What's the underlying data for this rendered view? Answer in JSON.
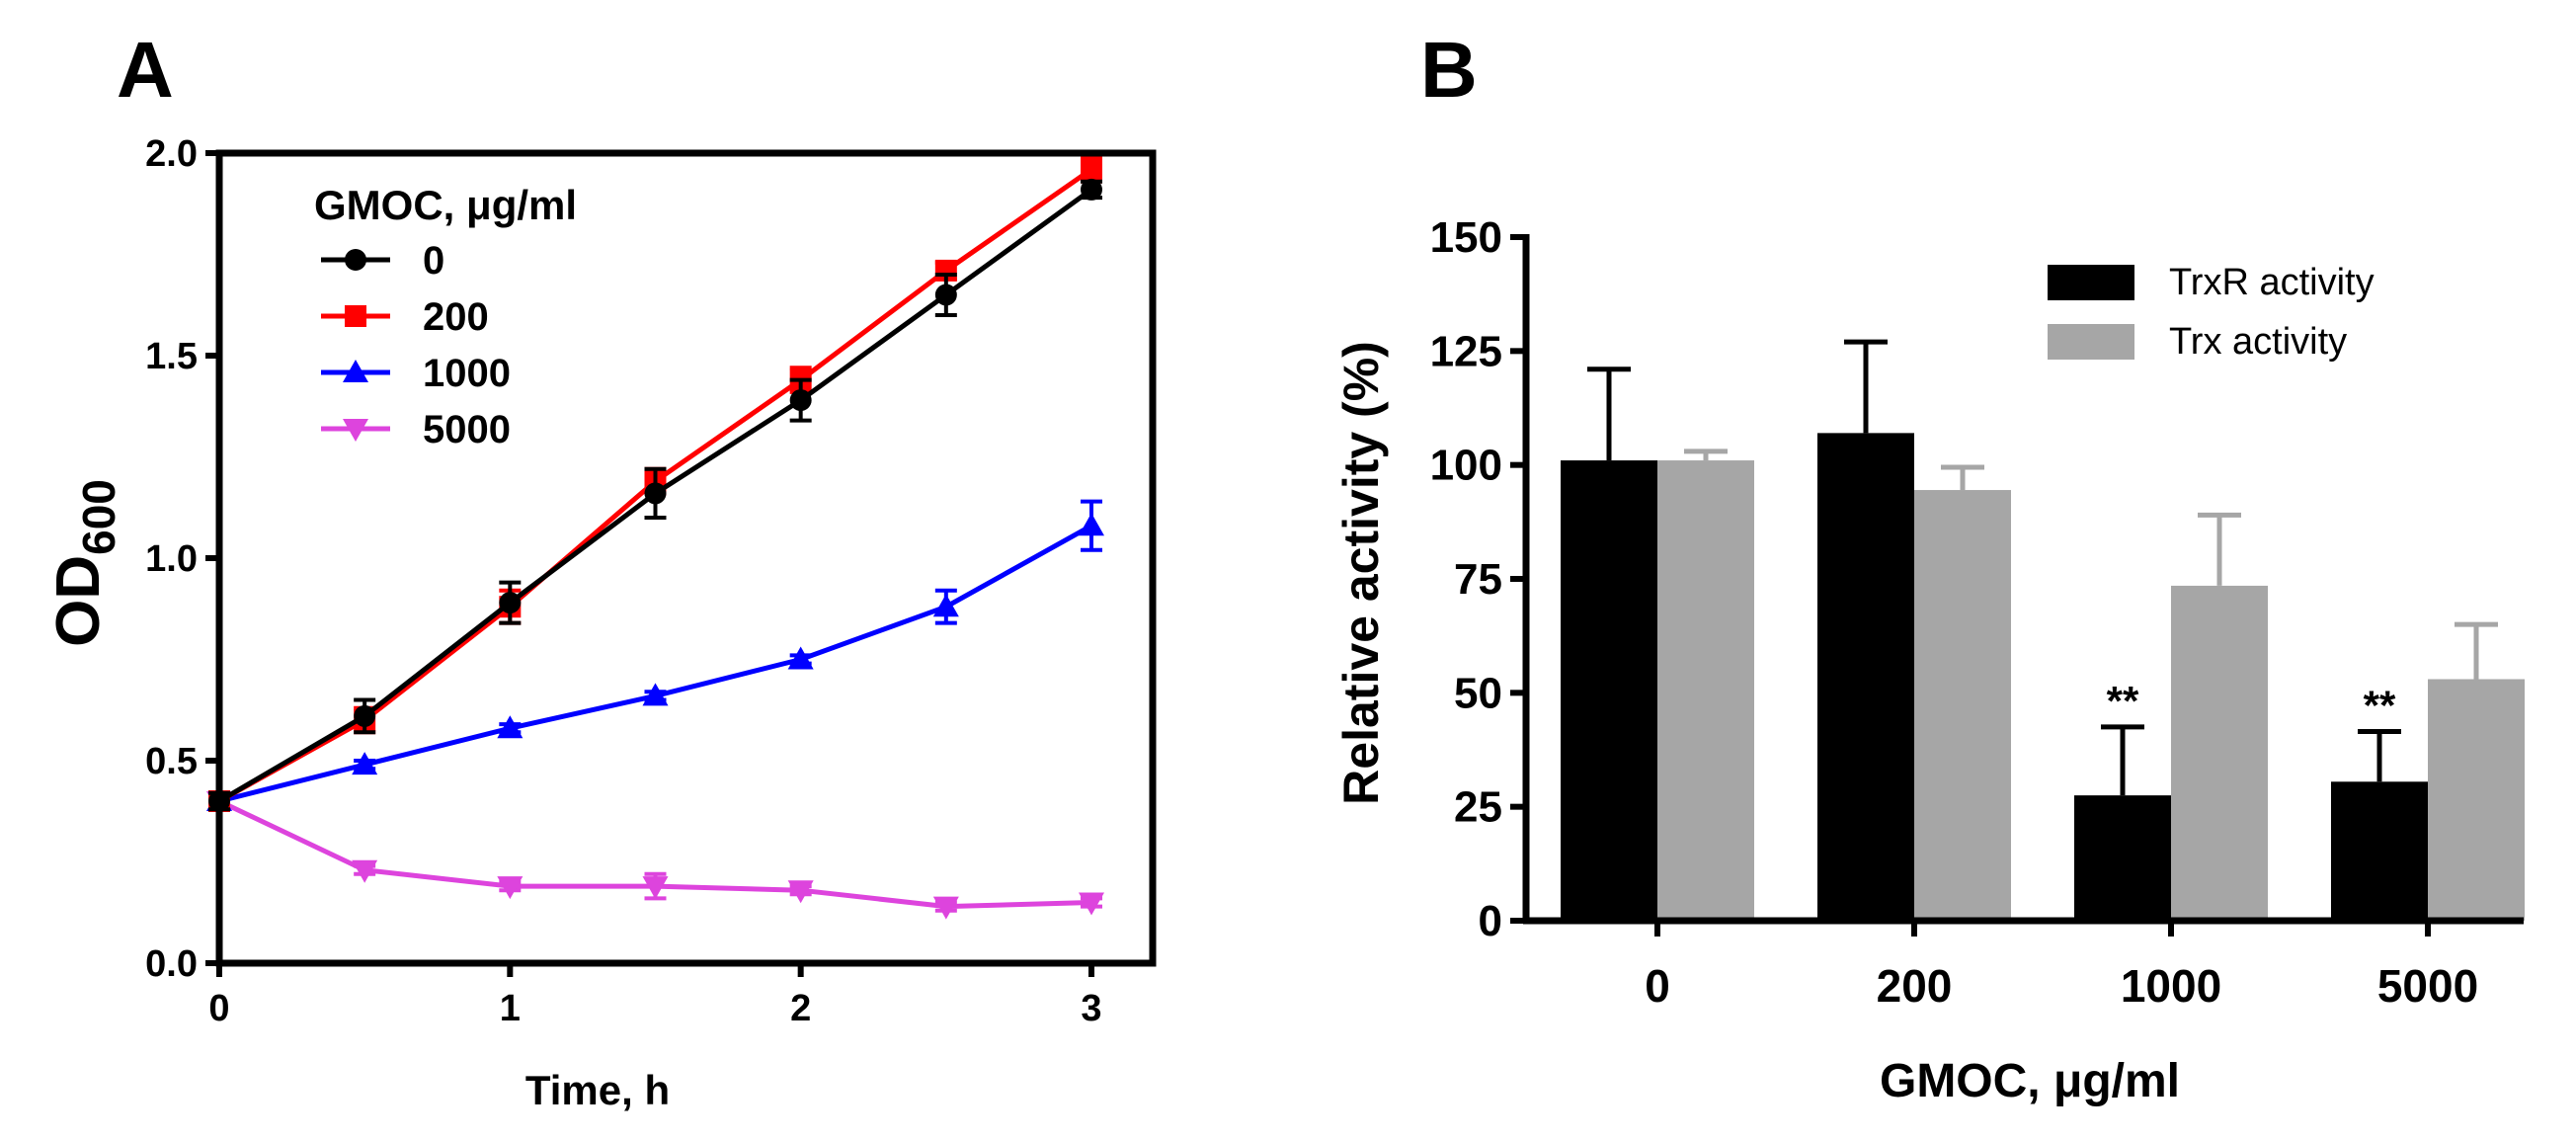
{
  "panels": {
    "a_label": "A",
    "b_label": "B"
  },
  "colors": {
    "black": "#000000",
    "red": "#ff0000",
    "blue": "#0000ff",
    "magenta": "#dd44dd",
    "gray": "#a6a6a6"
  },
  "chart_data": [
    {
      "id": "A",
      "type": "line",
      "title": "",
      "xlabel": "Time, h",
      "ylabel_main": "OD",
      "ylabel_sub": "600",
      "xlim": [
        0,
        3
      ],
      "ylim": [
        0,
        2
      ],
      "xticks": [
        0,
        1,
        2,
        3
      ],
      "xtick_labels": [
        "0",
        "1",
        "2",
        "3"
      ],
      "yticks": [
        0,
        0.5,
        1,
        1.5,
        2
      ],
      "ytick_labels": [
        "0.0",
        "0.5",
        "1.0",
        "1.5",
        "2.0"
      ],
      "legend_title": "GMOC, μg/ml",
      "legend_position": "top-left",
      "x": [
        0,
        0.5,
        1,
        1.5,
        2,
        2.5,
        3
      ],
      "series": [
        {
          "name": "0",
          "color": "#000000",
          "marker": "circle",
          "values": [
            0.4,
            0.61,
            0.89,
            1.16,
            1.39,
            1.65,
            1.91
          ],
          "errors": [
            0.02,
            0.04,
            0.05,
            0.06,
            0.05,
            0.05,
            0.02
          ]
        },
        {
          "name": "200",
          "color": "#ff0000",
          "marker": "square",
          "values": [
            0.4,
            0.6,
            0.88,
            1.19,
            1.44,
            1.71,
            1.96
          ],
          "errors": [
            0.01,
            0.03,
            0.04,
            0.03,
            0.03,
            0.02,
            0.03
          ]
        },
        {
          "name": "1000",
          "color": "#0000ff",
          "marker": "triangle-up",
          "values": [
            0.4,
            0.49,
            0.58,
            0.66,
            0.75,
            0.88,
            1.08
          ],
          "errors": [
            0.01,
            0.01,
            0.01,
            0.01,
            0.01,
            0.04,
            0.06
          ]
        },
        {
          "name": "5000",
          "color": "#dd44dd",
          "marker": "triangle-down",
          "values": [
            0.4,
            0.23,
            0.19,
            0.19,
            0.18,
            0.14,
            0.15
          ],
          "errors": [
            0.01,
            0.01,
            0.01,
            0.03,
            0.01,
            0.01,
            0.01
          ]
        }
      ]
    },
    {
      "id": "B",
      "type": "bar",
      "title": "",
      "xlabel": "GMOC, μg/ml",
      "ylabel": "Relative activity (%)",
      "ylim": [
        0,
        150
      ],
      "yticks": [
        0,
        25,
        50,
        75,
        100,
        125,
        150
      ],
      "ytick_labels": [
        "0",
        "25",
        "50",
        "75",
        "100",
        "125",
        "150"
      ],
      "categories": [
        "0",
        "200",
        "1000",
        "5000"
      ],
      "legend_position": "top-right",
      "series": [
        {
          "name": "TrxR activity",
          "color": "#000000",
          "values": [
            101,
            107,
            27.5,
            30.5
          ],
          "errors": [
            20,
            20,
            15,
            11
          ],
          "annotations": [
            "",
            "",
            "**",
            "**"
          ]
        },
        {
          "name": "Trx activity",
          "color": "#a6a6a6",
          "values": [
            101,
            94.5,
            73.5,
            53
          ],
          "errors": [
            2,
            5,
            15.5,
            12
          ],
          "annotations": [
            "",
            "",
            "",
            ""
          ]
        }
      ]
    }
  ]
}
